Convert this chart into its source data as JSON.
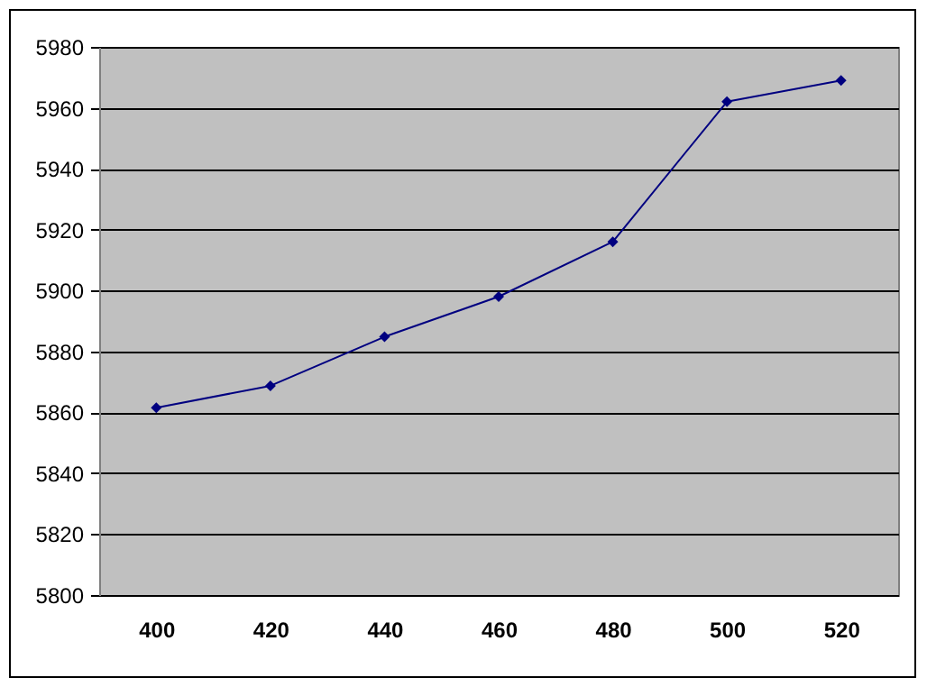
{
  "chart_data": {
    "type": "line",
    "categories": [
      "400",
      "420",
      "440",
      "460",
      "480",
      "500",
      "520"
    ],
    "series": [
      {
        "color": "#000080",
        "values": [
          5861.5,
          5868.7,
          5884.8,
          5898,
          5916,
          5962,
          5969
        ]
      }
    ],
    "ylim": [
      5800,
      5980
    ],
    "yticks": [
      5800,
      5820,
      5840,
      5860,
      5880,
      5900,
      5920,
      5940,
      5960,
      5980
    ],
    "grid": "y",
    "marker": "diamond",
    "line_style": "solid",
    "legend": false
  }
}
